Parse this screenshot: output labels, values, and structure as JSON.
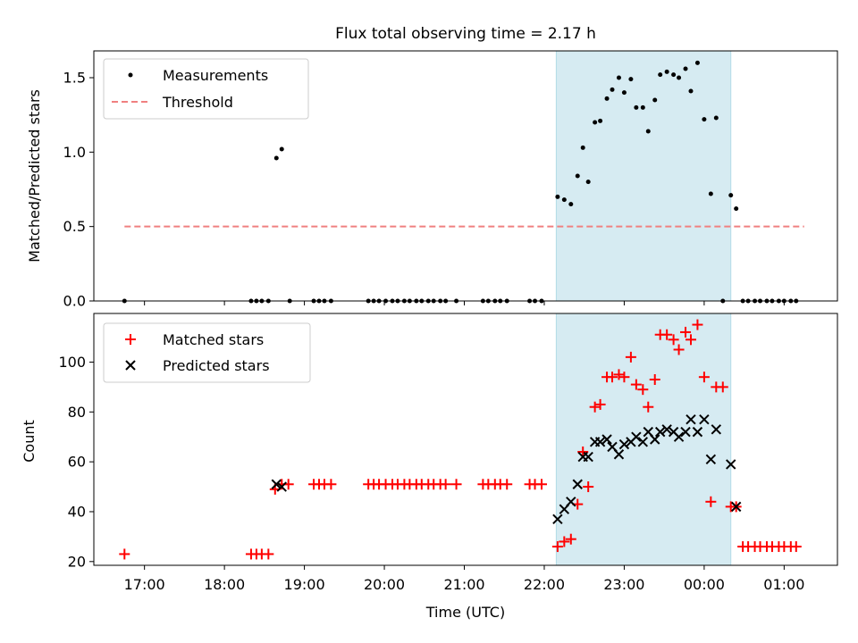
{
  "chart_data": [
    {
      "type": "scatter",
      "title": "Flux total observing time = 2.17 h",
      "xlabel": "",
      "ylabel": "Matched/Predicted stars",
      "xlim": [
        "16:22",
        "01:40"
      ],
      "ylim": [
        0,
        1.68
      ],
      "yticks": [
        "0.0",
        "0.5",
        "1.0",
        "1.5"
      ],
      "ytick_values": [
        0,
        0.5,
        1.0,
        1.5
      ],
      "shaded_span": [
        "22:09",
        "00:20"
      ],
      "legend_position": "top-left",
      "legend": [
        "Measurements",
        "Threshold"
      ],
      "threshold": {
        "name": "Threshold",
        "value": 0.5,
        "from": "16:45",
        "to": "01:15",
        "color": "#f08080"
      },
      "series": [
        {
          "name": "Measurements",
          "marker": "dot",
          "color": "#000000",
          "points": [
            [
              "16:45",
              0.0
            ],
            [
              "18:20",
              0.0
            ],
            [
              "18:24",
              0.0
            ],
            [
              "18:28",
              0.0
            ],
            [
              "18:33",
              0.0
            ],
            [
              "18:39",
              0.96
            ],
            [
              "18:43",
              1.02
            ],
            [
              "18:49",
              0.0
            ],
            [
              "19:07",
              0.0
            ],
            [
              "19:11",
              0.0
            ],
            [
              "19:15",
              0.0
            ],
            [
              "19:20",
              0.0
            ],
            [
              "19:48",
              0.0
            ],
            [
              "19:52",
              0.0
            ],
            [
              "19:56",
              0.0
            ],
            [
              "20:01",
              0.0
            ],
            [
              "20:06",
              0.0
            ],
            [
              "20:10",
              0.0
            ],
            [
              "20:15",
              0.0
            ],
            [
              "20:19",
              0.0
            ],
            [
              "20:24",
              0.0
            ],
            [
              "20:28",
              0.0
            ],
            [
              "20:33",
              0.0
            ],
            [
              "20:37",
              0.0
            ],
            [
              "20:42",
              0.0
            ],
            [
              "20:46",
              0.0
            ],
            [
              "20:54",
              0.0
            ],
            [
              "21:14",
              0.0
            ],
            [
              "21:18",
              0.0
            ],
            [
              "21:23",
              0.0
            ],
            [
              "21:27",
              0.0
            ],
            [
              "21:32",
              0.0
            ],
            [
              "21:49",
              0.0
            ],
            [
              "21:53",
              0.0
            ],
            [
              "21:58",
              0.0
            ],
            [
              "22:10",
              0.7
            ],
            [
              "22:15",
              0.68
            ],
            [
              "22:20",
              0.65
            ],
            [
              "22:25",
              0.84
            ],
            [
              "22:29",
              1.03
            ],
            [
              "22:33",
              0.8
            ],
            [
              "22:38",
              1.2
            ],
            [
              "22:42",
              1.21
            ],
            [
              "22:47",
              1.36
            ],
            [
              "22:51",
              1.42
            ],
            [
              "22:56",
              1.5
            ],
            [
              "23:00",
              1.4
            ],
            [
              "23:05",
              1.49
            ],
            [
              "23:09",
              1.3
            ],
            [
              "23:14",
              1.3
            ],
            [
              "23:18",
              1.14
            ],
            [
              "23:23",
              1.35
            ],
            [
              "23:27",
              1.52
            ],
            [
              "23:32",
              1.54
            ],
            [
              "23:37",
              1.52
            ],
            [
              "23:41",
              1.5
            ],
            [
              "23:46",
              1.56
            ],
            [
              "23:50",
              1.41
            ],
            [
              "23:55",
              1.6
            ],
            [
              "00:00",
              1.22
            ],
            [
              "00:05",
              0.72
            ],
            [
              "00:09",
              1.23
            ],
            [
              "00:14",
              0.0
            ],
            [
              "00:20",
              0.71
            ],
            [
              "00:24",
              0.62
            ],
            [
              "00:29",
              0.0
            ],
            [
              "00:33",
              0.0
            ],
            [
              "00:38",
              0.0
            ],
            [
              "00:42",
              0.0
            ],
            [
              "00:47",
              0.0
            ],
            [
              "00:51",
              0.0
            ],
            [
              "00:56",
              0.0
            ],
            [
              "01:00",
              0.0
            ],
            [
              "01:05",
              0.0
            ],
            [
              "01:09",
              0.0
            ]
          ]
        }
      ]
    },
    {
      "type": "scatter",
      "title": "",
      "xlabel": "Time (UTC)",
      "ylabel": "Count",
      "xlim": [
        "16:22",
        "01:40"
      ],
      "ylim": [
        18.5,
        119.5
      ],
      "xticks": [
        "17:00",
        "18:00",
        "19:00",
        "20:00",
        "21:00",
        "22:00",
        "23:00",
        "00:00",
        "01:00"
      ],
      "yticks": [
        "20",
        "40",
        "60",
        "80",
        "100"
      ],
      "ytick_values": [
        20,
        40,
        60,
        80,
        100
      ],
      "shaded_span": [
        "22:09",
        "00:20"
      ],
      "legend_position": "top-left",
      "legend": [
        "Matched stars",
        "Predicted stars"
      ],
      "series": [
        {
          "name": "Matched stars",
          "marker": "plus",
          "color": "#ff0000",
          "points": [
            [
              "16:45",
              23
            ],
            [
              "18:20",
              23
            ],
            [
              "18:24",
              23
            ],
            [
              "18:28",
              23
            ],
            [
              "18:33",
              23
            ],
            [
              "18:38",
              49
            ],
            [
              "18:43",
              51
            ],
            [
              "18:48",
              51
            ],
            [
              "19:07",
              51
            ],
            [
              "19:11",
              51
            ],
            [
              "19:15",
              51
            ],
            [
              "19:20",
              51
            ],
            [
              "19:48",
              51
            ],
            [
              "19:52",
              51
            ],
            [
              "19:56",
              51
            ],
            [
              "20:01",
              51
            ],
            [
              "20:06",
              51
            ],
            [
              "20:10",
              51
            ],
            [
              "20:15",
              51
            ],
            [
              "20:19",
              51
            ],
            [
              "20:24",
              51
            ],
            [
              "20:28",
              51
            ],
            [
              "20:33",
              51
            ],
            [
              "20:37",
              51
            ],
            [
              "20:42",
              51
            ],
            [
              "20:46",
              51
            ],
            [
              "20:54",
              51
            ],
            [
              "21:14",
              51
            ],
            [
              "21:18",
              51
            ],
            [
              "21:23",
              51
            ],
            [
              "21:27",
              51
            ],
            [
              "21:32",
              51
            ],
            [
              "21:49",
              51
            ],
            [
              "21:53",
              51
            ],
            [
              "21:58",
              51
            ],
            [
              "22:10",
              26
            ],
            [
              "22:15",
              28
            ],
            [
              "22:20",
              29
            ],
            [
              "22:25",
              43
            ],
            [
              "22:29",
              64
            ],
            [
              "22:33",
              50
            ],
            [
              "22:38",
              82
            ],
            [
              "22:42",
              83
            ],
            [
              "22:47",
              94
            ],
            [
              "22:51",
              94
            ],
            [
              "22:56",
              95
            ],
            [
              "23:00",
              94
            ],
            [
              "23:05",
              102
            ],
            [
              "23:09",
              91
            ],
            [
              "23:14",
              89
            ],
            [
              "23:18",
              82
            ],
            [
              "23:23",
              93
            ],
            [
              "23:27",
              111
            ],
            [
              "23:32",
              111
            ],
            [
              "23:37",
              109
            ],
            [
              "23:41",
              105
            ],
            [
              "23:46",
              112
            ],
            [
              "23:50",
              109
            ],
            [
              "23:55",
              115
            ],
            [
              "00:00",
              94
            ],
            [
              "00:05",
              44
            ],
            [
              "00:09",
              90
            ],
            [
              "00:14",
              90
            ],
            [
              "00:20",
              42
            ],
            [
              "00:24",
              42
            ],
            [
              "00:29",
              26
            ],
            [
              "00:33",
              26
            ],
            [
              "00:38",
              26
            ],
            [
              "00:42",
              26
            ],
            [
              "00:47",
              26
            ],
            [
              "00:51",
              26
            ],
            [
              "00:56",
              26
            ],
            [
              "01:00",
              26
            ],
            [
              "01:05",
              26
            ],
            [
              "01:09",
              26
            ]
          ]
        },
        {
          "name": "Predicted stars",
          "marker": "x",
          "color": "#000000",
          "points": [
            [
              "18:39",
              51
            ],
            [
              "18:43",
              50
            ],
            [
              "22:10",
              37
            ],
            [
              "22:15",
              41
            ],
            [
              "22:20",
              44
            ],
            [
              "22:25",
              51
            ],
            [
              "22:29",
              62
            ],
            [
              "22:33",
              62
            ],
            [
              "22:38",
              68
            ],
            [
              "22:42",
              68
            ],
            [
              "22:47",
              69
            ],
            [
              "22:51",
              66
            ],
            [
              "22:56",
              63
            ],
            [
              "23:00",
              67
            ],
            [
              "23:05",
              68
            ],
            [
              "23:09",
              70
            ],
            [
              "23:14",
              68
            ],
            [
              "23:18",
              72
            ],
            [
              "23:23",
              69
            ],
            [
              "23:27",
              72
            ],
            [
              "23:32",
              73
            ],
            [
              "23:37",
              72
            ],
            [
              "23:41",
              70
            ],
            [
              "23:46",
              72
            ],
            [
              "23:50",
              77
            ],
            [
              "23:55",
              72
            ],
            [
              "00:00",
              77
            ],
            [
              "00:05",
              61
            ],
            [
              "00:09",
              73
            ],
            [
              "00:20",
              59
            ],
            [
              "00:24",
              42
            ]
          ]
        }
      ]
    }
  ]
}
